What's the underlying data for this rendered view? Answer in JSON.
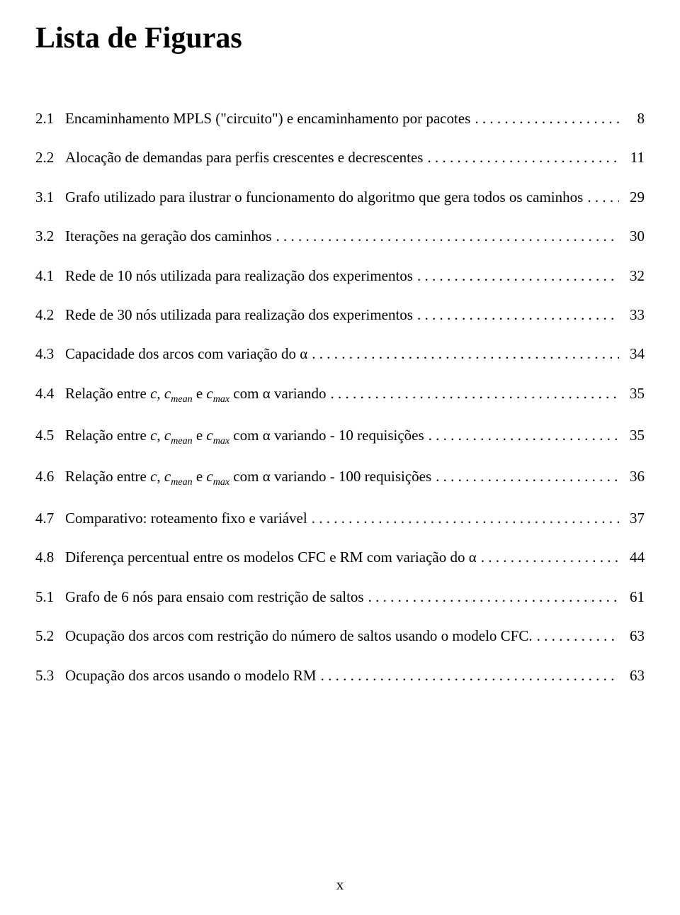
{
  "title": "Lista de Figuras",
  "pageNumber": "x",
  "entries": [
    {
      "num": "2.1",
      "text": "Encaminhamento MPLS (\"circuito\") e encaminhamento por pacotes",
      "page": "8",
      "gap": false
    },
    {
      "num": "2.2",
      "text": "Alocação de demandas para perfis crescentes e decrescentes",
      "page": "11",
      "gap": false
    },
    {
      "num": "3.1",
      "text": "Grafo utilizado para ilustrar o funcionamento do algoritmo que gera todos os caminhos",
      "page": "29",
      "gap": true
    },
    {
      "num": "3.2",
      "text": "Iterações na geração dos caminhos",
      "page": "30",
      "gap": false
    },
    {
      "num": "4.1",
      "text": "Rede de 10 nós utilizada para realização dos experimentos",
      "page": "32",
      "gap": true
    },
    {
      "num": "4.2",
      "text": "Rede de 30 nós utilizada para realização dos experimentos",
      "page": "33",
      "gap": false
    },
    {
      "num": "4.3",
      "text": "Capacidade dos arcos com variação do α",
      "page": "34",
      "gap": false
    },
    {
      "num": "4.4",
      "text": "Relação entre <span class=\"italic\">c</span>, <span class=\"italic\">c<span class=\"sub\">mean</span></span> e <span class=\"italic\">c<span class=\"sub\">max</span></span> com α variando",
      "page": "35",
      "gap": false,
      "html": true
    },
    {
      "num": "4.5",
      "text": "Relação entre <span class=\"italic\">c</span>, <span class=\"italic\">c<span class=\"sub\">mean</span></span> e <span class=\"italic\">c<span class=\"sub\">max</span></span> com α variando - 10 requisições",
      "page": "35",
      "gap": false,
      "html": true
    },
    {
      "num": "4.6",
      "text": "Relação entre <span class=\"italic\">c</span>, <span class=\"italic\">c<span class=\"sub\">mean</span></span> e <span class=\"italic\">c<span class=\"sub\">max</span></span> com α variando - 100 requisições",
      "page": "36",
      "gap": false,
      "html": true
    },
    {
      "num": "4.7",
      "text": "Comparativo: roteamento fixo e variável",
      "page": "37",
      "gap": false
    },
    {
      "num": "4.8",
      "text": "Diferença percentual entre os modelos CFC e RM com variação do α",
      "page": "44",
      "gap": false
    },
    {
      "num": "5.1",
      "text": "Grafo de 6 nós para ensaio com restrição de saltos",
      "page": "61",
      "gap": true
    },
    {
      "num": "5.2",
      "text": "Ocupação dos arcos com restrição do número de saltos usando o modelo CFC.",
      "page": "63",
      "gap": false
    },
    {
      "num": "5.3",
      "text": "Ocupação dos arcos usando o modelo RM",
      "page": "63",
      "gap": false
    }
  ]
}
